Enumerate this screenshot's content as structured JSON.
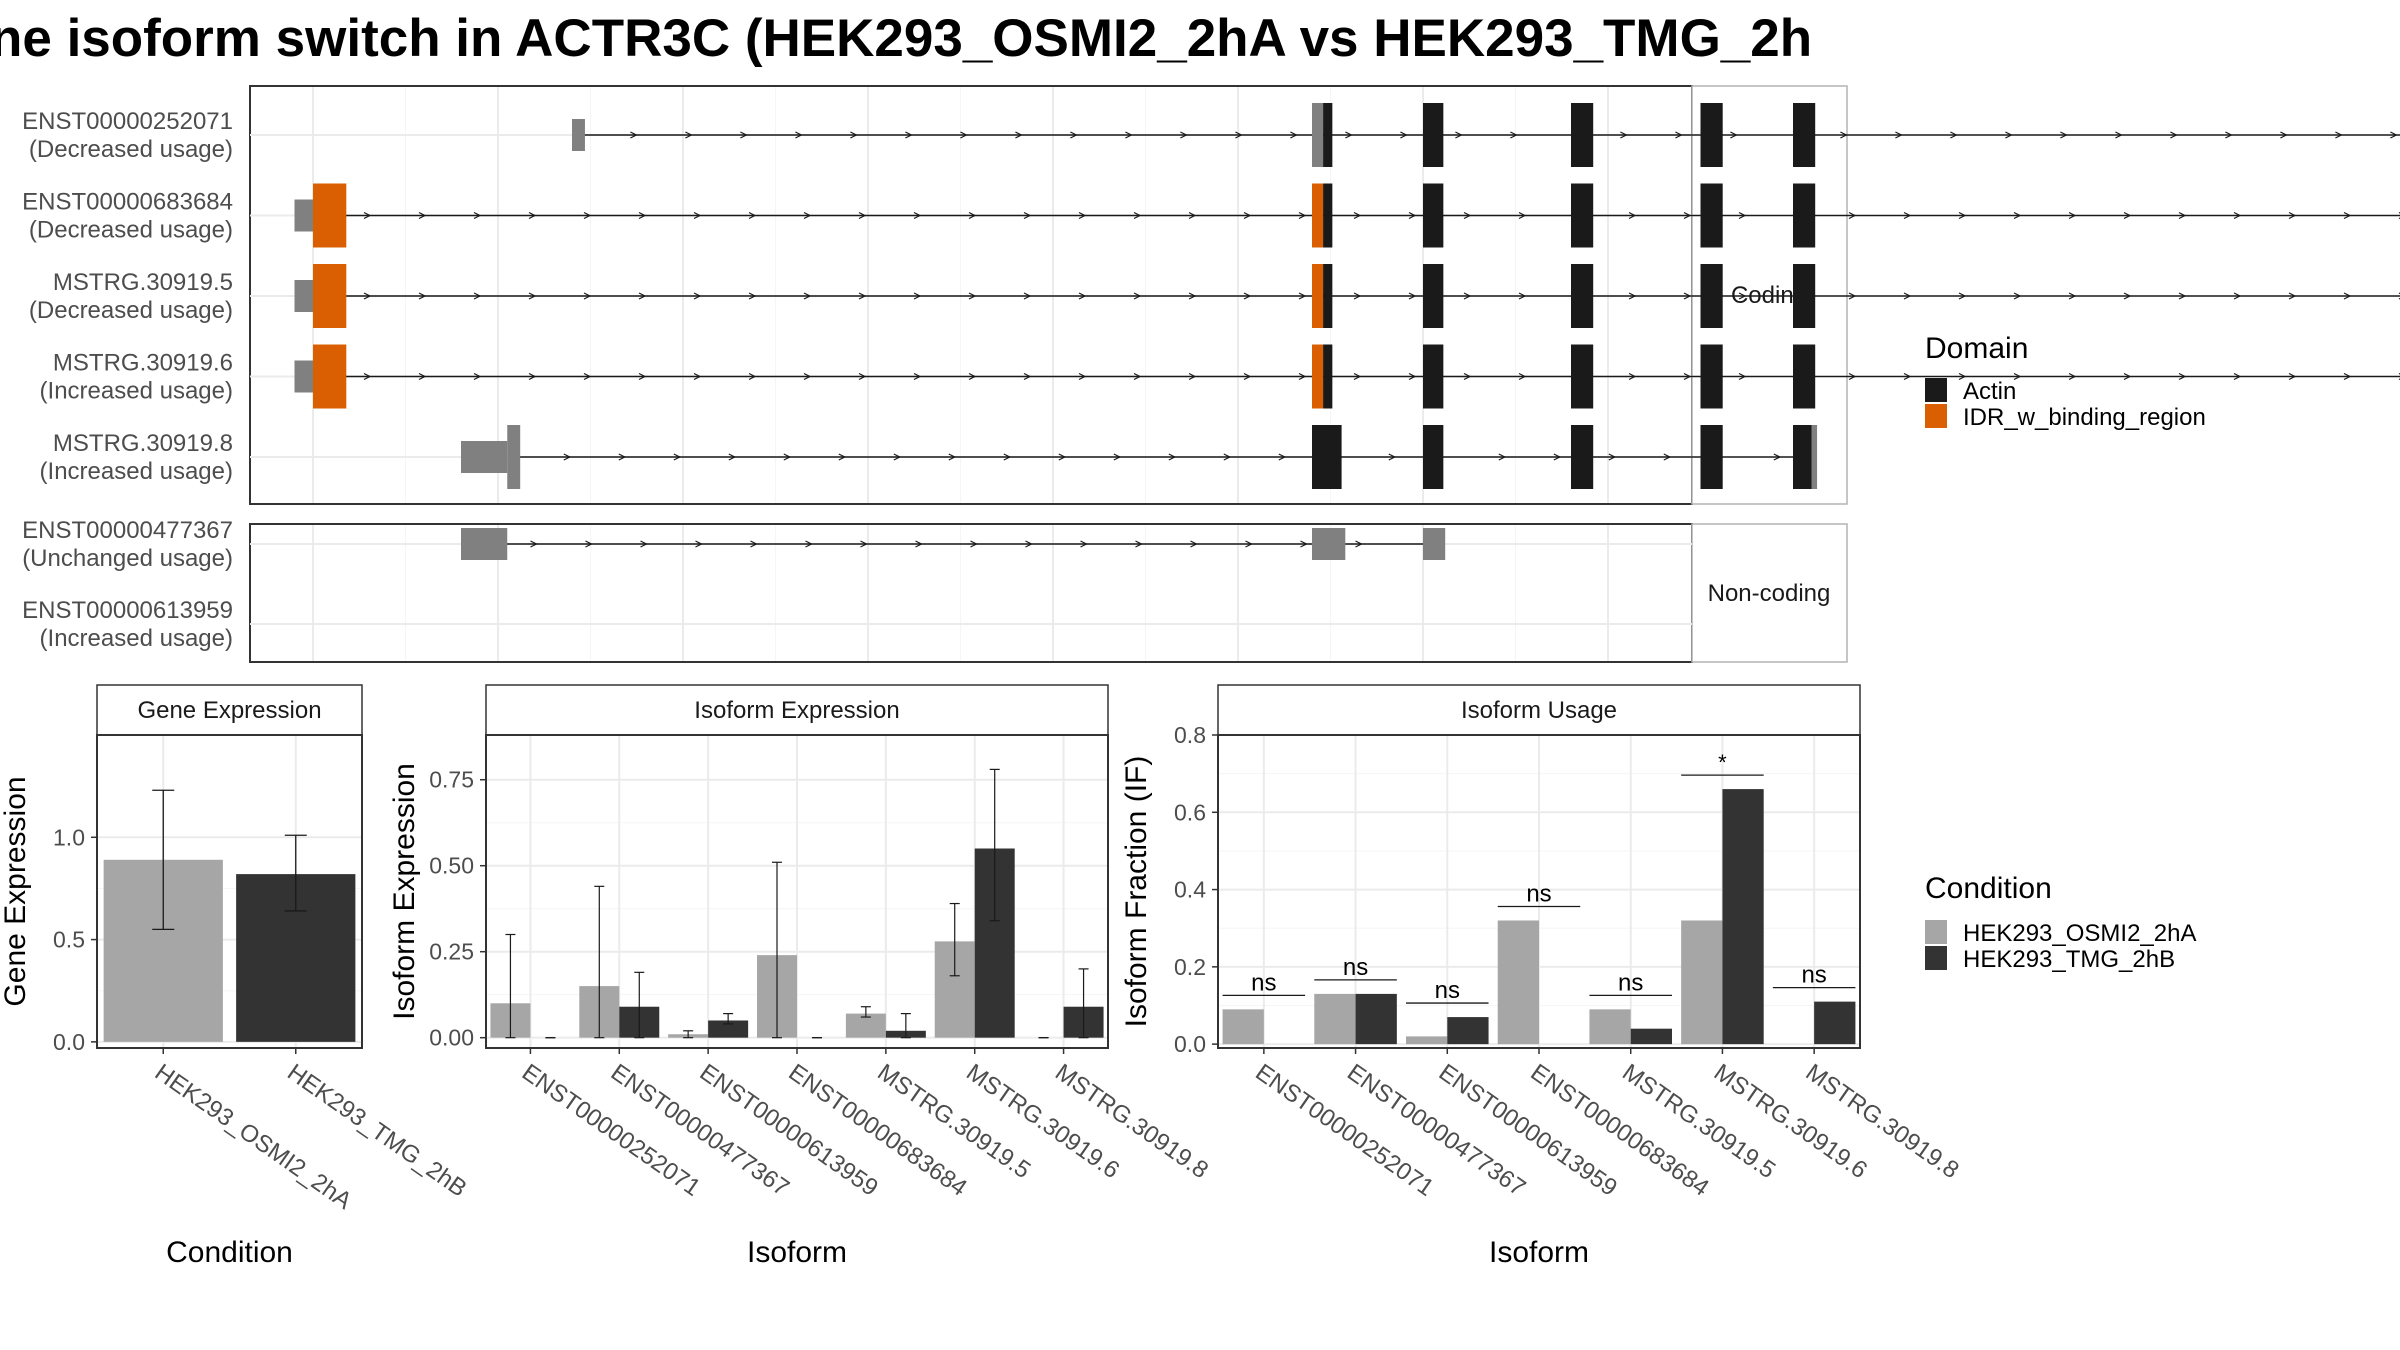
{
  "title": "ne isoform switch in ACTR3C (HEK293_OSMI2_2hA vs HEK293_TMG_2h",
  "colors": {
    "actin": "#1a1a1a",
    "idr": "#d95f02",
    "utr": "#808080",
    "cond1": "#a6a6a6",
    "cond2": "#333333",
    "grid": "#ebebeb",
    "panel_border": "#333333",
    "strip_bg": "#ffffff"
  },
  "structure": {
    "facets": [
      "Coding",
      "Non-coding"
    ],
    "legend_title": "Domain",
    "legend_items": [
      {
        "label": "Actin",
        "color_key": "actin"
      },
      {
        "label": "IDR_w_binding_region",
        "color_key": "idr"
      }
    ],
    "transcripts": [
      {
        "id": "ENST00000252071",
        "usage": "(Decreased usage)",
        "facet": "Coding",
        "segments": [
          [
            1.4,
            1.47,
            "utr",
            "thin"
          ],
          [
            5.4,
            5.46,
            "utr",
            "thick"
          ],
          [
            5.46,
            5.51,
            "actin",
            "thick"
          ],
          [
            6.0,
            6.11,
            "actin",
            "thick"
          ],
          [
            6.8,
            6.92,
            "actin",
            "thick"
          ],
          [
            7.5,
            7.62,
            "actin",
            "thick"
          ],
          [
            8.0,
            8.12,
            "actin",
            "thick"
          ],
          [
            14.1,
            14.17,
            "utr",
            "thick"
          ],
          [
            14.17,
            14.25,
            "utr",
            "thin"
          ],
          [
            14.55,
            14.72,
            "utr",
            "thin"
          ]
        ],
        "span": [
          1.44,
          14.2
        ]
      },
      {
        "id": "ENST00000683684",
        "usage": "(Decreased usage)",
        "facet": "Coding",
        "segments": [
          [
            -0.1,
            0.0,
            "utr",
            "thin"
          ],
          [
            0.0,
            0.18,
            "idr",
            "thick"
          ],
          [
            5.4,
            5.46,
            "idr",
            "thick"
          ],
          [
            5.46,
            5.51,
            "actin",
            "thick"
          ],
          [
            6.0,
            6.11,
            "actin",
            "thick"
          ],
          [
            6.8,
            6.92,
            "actin",
            "thick"
          ],
          [
            7.5,
            7.62,
            "actin",
            "thick"
          ],
          [
            8.0,
            8.12,
            "actin",
            "thick"
          ],
          [
            14.1,
            14.17,
            "utr",
            "thick"
          ],
          [
            14.17,
            14.25,
            "utr",
            "thin"
          ],
          [
            14.55,
            14.72,
            "utr",
            "thin"
          ]
        ],
        "span": [
          0.0,
          14.2
        ]
      },
      {
        "id": "MSTRG.30919.5",
        "usage": "(Decreased usage)",
        "facet": "Coding",
        "segments": [
          [
            -0.1,
            0.0,
            "utr",
            "thin"
          ],
          [
            0.0,
            0.18,
            "idr",
            "thick"
          ],
          [
            5.4,
            5.46,
            "idr",
            "thick"
          ],
          [
            5.46,
            5.51,
            "actin",
            "thick"
          ],
          [
            6.0,
            6.11,
            "actin",
            "thick"
          ],
          [
            6.8,
            6.92,
            "actin",
            "thick"
          ],
          [
            7.5,
            7.62,
            "actin",
            "thick"
          ],
          [
            8.0,
            8.12,
            "actin",
            "thick"
          ],
          [
            12.65,
            12.75,
            "utr",
            "thick"
          ],
          [
            12.75,
            12.8,
            "utr",
            "thin"
          ]
        ],
        "span": [
          0.0,
          12.7
        ]
      },
      {
        "id": "MSTRG.30919.6",
        "usage": "(Increased usage)",
        "facet": "Coding",
        "segments": [
          [
            -0.1,
            0.0,
            "utr",
            "thin"
          ],
          [
            0.0,
            0.18,
            "idr",
            "thick"
          ],
          [
            5.4,
            5.46,
            "idr",
            "thick"
          ],
          [
            5.46,
            5.51,
            "actin",
            "thick"
          ],
          [
            6.0,
            6.11,
            "actin",
            "thick"
          ],
          [
            6.8,
            6.92,
            "actin",
            "thick"
          ],
          [
            7.5,
            7.62,
            "actin",
            "thick"
          ],
          [
            8.0,
            8.12,
            "actin",
            "thick"
          ],
          [
            11.95,
            12.05,
            "utr",
            "thick"
          ],
          [
            12.05,
            12.12,
            "utr",
            "thin"
          ]
        ],
        "span": [
          0.0,
          12.0
        ]
      },
      {
        "id": "MSTRG.30919.8",
        "usage": "(Increased usage)",
        "facet": "Coding",
        "segments": [
          [
            0.8,
            1.05,
            "utr",
            "thin"
          ],
          [
            1.05,
            1.12,
            "utr",
            "thick"
          ],
          [
            5.4,
            5.56,
            "actin",
            "thick"
          ],
          [
            6.0,
            6.11,
            "actin",
            "thick"
          ],
          [
            6.8,
            6.92,
            "actin",
            "thick"
          ],
          [
            7.5,
            7.62,
            "actin",
            "thick"
          ],
          [
            8.0,
            8.1,
            "actin",
            "thick"
          ],
          [
            8.1,
            8.13,
            "utr",
            "thick"
          ]
        ],
        "span": [
          1.08,
          8.05
        ]
      },
      {
        "id": "ENST00000477367",
        "usage": "(Unchanged usage)",
        "facet": "Non-coding",
        "segments": [
          [
            0.8,
            1.05,
            "utr",
            "thin"
          ],
          [
            5.4,
            5.58,
            "utr",
            "thin"
          ],
          [
            6.0,
            6.12,
            "utr",
            "thin"
          ]
        ],
        "span": [
          0.9,
          6.05
        ]
      },
      {
        "id": "ENST00000613959",
        "usage": "(Increased usage)",
        "facet": "Non-coding",
        "segments": [
          [
            13.85,
            16.25,
            "utr",
            "thin"
          ],
          [
            16.25,
            16.45,
            "utr",
            "thick"
          ],
          [
            16.45,
            17.15,
            "utr",
            "thin"
          ]
        ],
        "span": [
          13.9,
          17.0
        ]
      }
    ]
  },
  "panels": {
    "gene": {
      "strip": "Gene Expression",
      "xlabel": "Condition",
      "ylabel": "Gene Expression"
    },
    "isoexp": {
      "strip": "Isoform Expression",
      "xlabel": "Isoform",
      "ylabel": "Isoform Expression"
    },
    "isouse": {
      "strip": "Isoform Usage",
      "xlabel": "Isoform",
      "ylabel": "Isoform Fraction (IF)"
    },
    "condition_legend_title": "Condition"
  },
  "chart_data": [
    {
      "type": "bar",
      "title": "Gene Expression",
      "xlabel": "Condition",
      "ylabel": "Gene Expression",
      "categories": [
        "HEK293_OSMI2_2hA",
        "HEK293_TMG_2hB"
      ],
      "values": [
        0.89,
        0.82
      ],
      "err_low": [
        0.55,
        0.64
      ],
      "err_high": [
        1.23,
        1.01
      ],
      "ylim": [
        -0.03,
        1.5
      ],
      "yticks": [
        0.0,
        0.5,
        1.0
      ],
      "ytick_labels": [
        "0.0",
        "0.5",
        "1.0"
      ]
    },
    {
      "type": "bar",
      "title": "Isoform Expression",
      "xlabel": "Isoform",
      "ylabel": "Isoform Expression",
      "categories": [
        "ENST00000252071",
        "ENST00000477367",
        "ENST00000613959",
        "ENST00000683684",
        "MSTRG.30919.5",
        "MSTRG.30919.6",
        "MSTRG.30919.8"
      ],
      "series": [
        {
          "name": "HEK293_OSMI2_2hA",
          "values": [
            0.1,
            0.15,
            0.01,
            0.24,
            0.07,
            0.28,
            0.0
          ],
          "err_low": [
            0.0,
            0.0,
            0.0,
            0.0,
            0.06,
            0.18,
            0.0
          ],
          "err_high": [
            0.3,
            0.44,
            0.02,
            0.51,
            0.09,
            0.39,
            0.0
          ]
        },
        {
          "name": "HEK293_TMG_2hB",
          "values": [
            0.0,
            0.09,
            0.05,
            0.0,
            0.02,
            0.55,
            0.09
          ],
          "err_low": [
            0.0,
            0.0,
            0.04,
            0.0,
            0.0,
            0.34,
            0.0
          ],
          "err_high": [
            0.0,
            0.19,
            0.07,
            0.0,
            0.07,
            0.78,
            0.2
          ]
        }
      ],
      "ylim": [
        -0.03,
        0.88
      ],
      "yticks": [
        0.0,
        0.25,
        0.5,
        0.75
      ],
      "ytick_labels": [
        "0.00",
        "0.25",
        "0.50",
        "0.75"
      ]
    },
    {
      "type": "bar",
      "title": "Isoform Usage",
      "xlabel": "Isoform",
      "ylabel": "Isoform Fraction (IF)",
      "categories": [
        "ENST00000252071",
        "ENST00000477367",
        "ENST00000613959",
        "ENST00000683684",
        "MSTRG.30919.5",
        "MSTRG.30919.6",
        "MSTRG.30919.8"
      ],
      "series": [
        {
          "name": "HEK293_OSMI2_2hA",
          "values": [
            0.09,
            0.13,
            0.02,
            0.32,
            0.09,
            0.32,
            0.0
          ]
        },
        {
          "name": "HEK293_TMG_2hB",
          "values": [
            0.0,
            0.13,
            0.07,
            0.0,
            0.04,
            0.66,
            0.11
          ]
        }
      ],
      "significance": [
        "ns",
        "ns",
        "ns",
        "ns",
        "ns",
        "*",
        "ns"
      ],
      "ylim": [
        -0.01,
        0.8
      ],
      "yticks": [
        0.0,
        0.2,
        0.4,
        0.6,
        0.8
      ],
      "ytick_labels": [
        "0.0",
        "0.2",
        "0.4",
        "0.6",
        "0.8"
      ]
    }
  ]
}
